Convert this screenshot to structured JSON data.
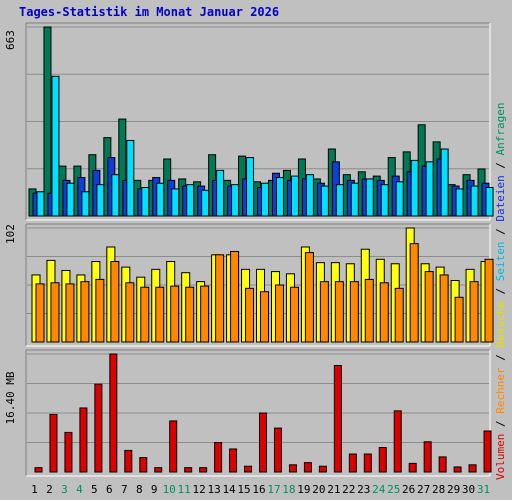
{
  "title": "Tages-Statistik im Monat Januar 2026",
  "colors": {
    "background": "#c0c0c0",
    "title": "#0000cc",
    "gridline": "#8c8c8c",
    "axis_text": "#000000",
    "weekend_day": "#009060",
    "anfragen": "#007a55",
    "dateien": "#0a3fd8",
    "seiten": "#00e0ff",
    "besuche": "#ffff10",
    "rechner": "#ff8800",
    "volumen": "#dd0000",
    "separator": "#000000"
  },
  "legend": {
    "top": [
      {
        "text": "Anfragen",
        "color": "#009060"
      },
      {
        "text": "Dateien",
        "color": "#1030e0"
      },
      {
        "text": "Seiten",
        "color": "#00b8e0"
      },
      {
        "text": "Besuche",
        "color": "#e0e000"
      },
      {
        "text": "Rechner",
        "color": "#ff8800"
      },
      {
        "text": "Volumen",
        "color": "#dd0000"
      }
    ],
    "separator": "/"
  },
  "chart_data": [
    {
      "type": "bar",
      "panel": "top",
      "axis_max_label": "663",
      "ylim": [
        0,
        663
      ],
      "categories": [
        "1",
        "2",
        "3",
        "4",
        "5",
        "6",
        "7",
        "8",
        "9",
        "10",
        "11",
        "12",
        "13",
        "14",
        "15",
        "16",
        "17",
        "18",
        "19",
        "20",
        "21",
        "22",
        "23",
        "24",
        "25",
        "26",
        "27",
        "28",
        "29",
        "30",
        "31"
      ],
      "weekend_days": [
        "3",
        "4",
        "10",
        "11",
        "17",
        "18",
        "24",
        "25",
        "31"
      ],
      "series": [
        {
          "name": "Anfragen",
          "values": [
            95,
            663,
            175,
            175,
            215,
            275,
            340,
            125,
            125,
            200,
            130,
            120,
            215,
            125,
            210,
            120,
            125,
            160,
            200,
            130,
            235,
            145,
            155,
            140,
            205,
            225,
            320,
            260,
            110,
            145,
            165
          ]
        },
        {
          "name": "Dateien",
          "values": [
            80,
            80,
            125,
            135,
            160,
            205,
            125,
            95,
            135,
            125,
            105,
            105,
            125,
            105,
            130,
            100,
            150,
            125,
            130,
            115,
            190,
            125,
            130,
            125,
            140,
            155,
            175,
            200,
            105,
            125,
            115
          ]
        },
        {
          "name": "Seiten",
          "values": [
            85,
            490,
            115,
            85,
            110,
            145,
            265,
            100,
            115,
            95,
            110,
            90,
            160,
            110,
            205,
            115,
            135,
            140,
            145,
            105,
            110,
            115,
            130,
            110,
            120,
            195,
            190,
            235,
            95,
            105,
            100
          ]
        }
      ]
    },
    {
      "type": "bar",
      "panel": "middle",
      "axis_max_label": "102",
      "ylim": [
        0,
        102
      ],
      "categories": [
        "1",
        "2",
        "3",
        "4",
        "5",
        "6",
        "7",
        "8",
        "9",
        "10",
        "11",
        "12",
        "13",
        "14",
        "15",
        "16",
        "17",
        "18",
        "19",
        "20",
        "21",
        "22",
        "23",
        "24",
        "25",
        "26",
        "27",
        "28",
        "29",
        "30",
        "31"
      ],
      "series": [
        {
          "name": "Besuche",
          "values": [
            60,
            73,
            64,
            60,
            72,
            85,
            67,
            58,
            65,
            72,
            62,
            54,
            78,
            78,
            65,
            65,
            63,
            61,
            85,
            71,
            71,
            70,
            83,
            74,
            70,
            102,
            70,
            67,
            55,
            65,
            72
          ]
        },
        {
          "name": "Rechner",
          "values": [
            52,
            53,
            52,
            54,
            56,
            72,
            53,
            49,
            49,
            50,
            49,
            50,
            78,
            81,
            48,
            45,
            51,
            49,
            80,
            54,
            54,
            54,
            56,
            53,
            48,
            88,
            63,
            60,
            40,
            54,
            74
          ]
        }
      ]
    },
    {
      "type": "bar",
      "panel": "bottom",
      "axis_max_label": "16.40 MB",
      "ylim": [
        0,
        16.4
      ],
      "categories": [
        "1",
        "2",
        "3",
        "4",
        "5",
        "6",
        "7",
        "8",
        "9",
        "10",
        "11",
        "12",
        "13",
        "14",
        "15",
        "16",
        "17",
        "18",
        "19",
        "20",
        "21",
        "22",
        "23",
        "24",
        "25",
        "26",
        "27",
        "28",
        "29",
        "30",
        "31"
      ],
      "series": [
        {
          "name": "Volumen",
          "values": [
            0.6,
            8.0,
            5.5,
            8.9,
            12.2,
            16.4,
            3.0,
            2.0,
            0.6,
            7.1,
            0.6,
            0.6,
            4.1,
            3.2,
            0.8,
            8.2,
            6.1,
            1.0,
            1.3,
            0.8,
            14.8,
            2.5,
            2.5,
            3.4,
            8.5,
            1.2,
            4.2,
            2.1,
            0.7,
            1.0,
            5.7
          ]
        }
      ]
    }
  ]
}
